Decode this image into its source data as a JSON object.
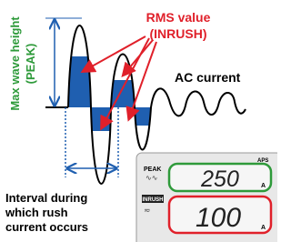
{
  "labels": {
    "peak": "Max wave height",
    "peak_sub": "(PEAK)",
    "rms": "RMS value",
    "rms_sub": "(INRUSH)",
    "ac": "AC current",
    "interval": [
      "Interval during",
      "which rush",
      "current occurs"
    ]
  },
  "display": {
    "aps": "APS",
    "rows": [
      {
        "tag": "PEAK",
        "value": 250,
        "unit": "A"
      },
      {
        "tag": "INRUSH",
        "value": 100,
        "unit": "A"
      }
    ]
  }
}
